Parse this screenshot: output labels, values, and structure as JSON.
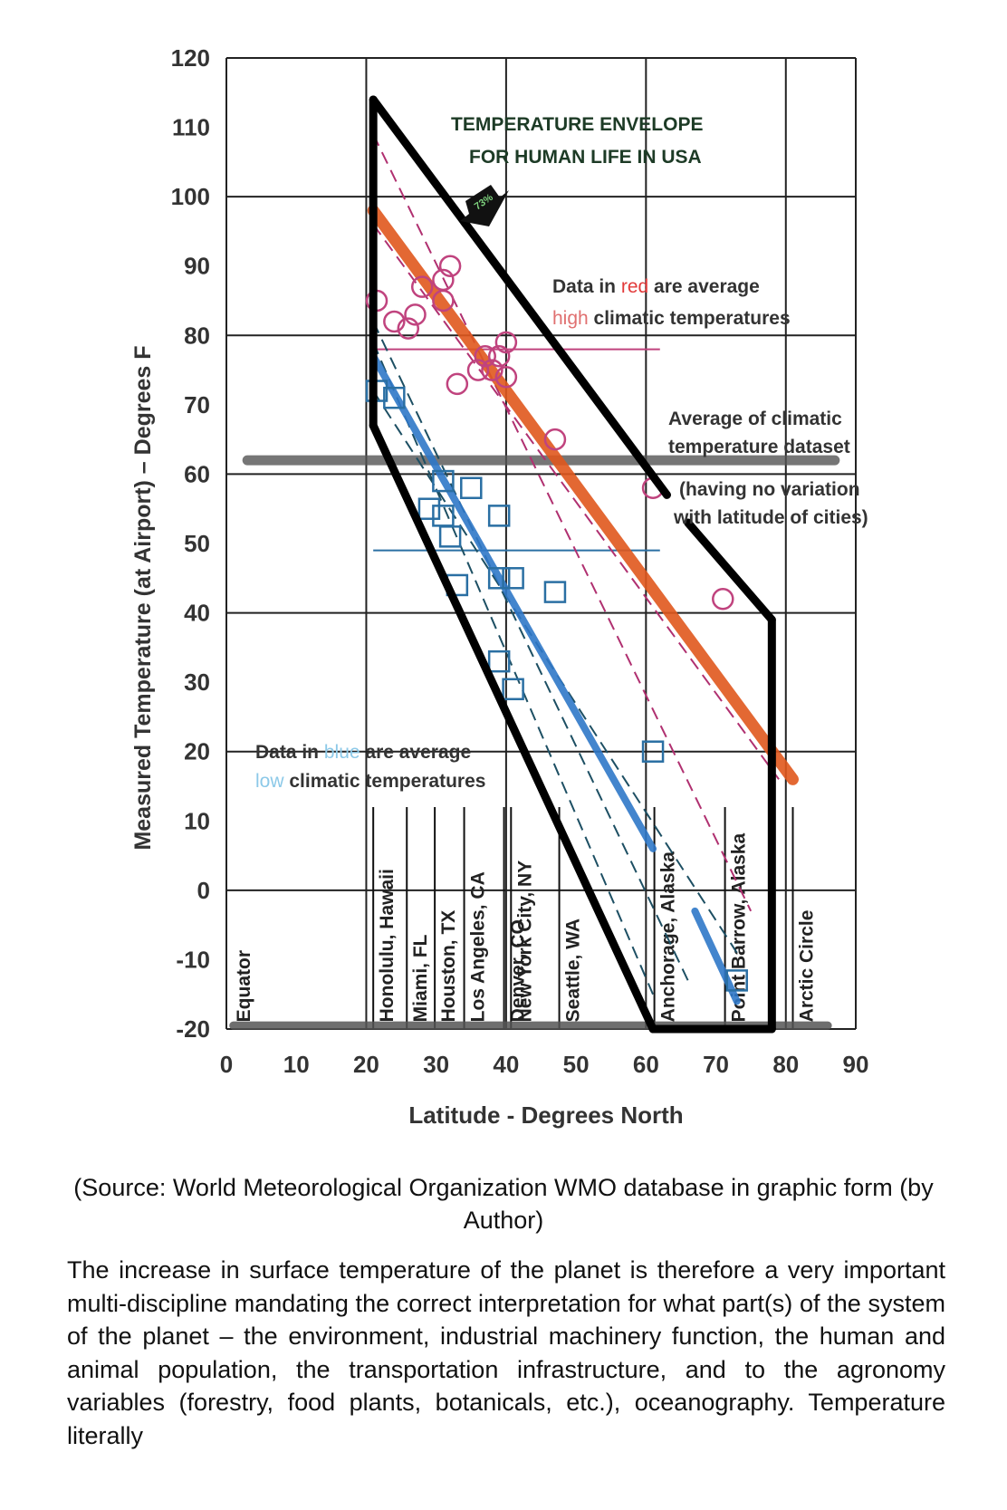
{
  "chart_data": {
    "type": "scatter",
    "title": [
      "TEMPERATURE ENVELOPE",
      "FOR HUMAN LIFE IN USA"
    ],
    "xlabel": "Latitude - Degrees North",
    "ylabel": "Measured Temperature (at Airport) – Degrees F",
    "xlim": [
      0,
      90
    ],
    "ylim": [
      -20,
      120
    ],
    "x_ticks": [
      "0",
      "10",
      "20",
      "30",
      "40",
      "50",
      "60",
      "70",
      "80",
      "90"
    ],
    "y_ticks": [
      "120",
      "110",
      "100",
      "90",
      "80",
      "70",
      "60",
      "50",
      "40",
      "30",
      "20",
      "10",
      "0",
      "-10",
      "-20"
    ],
    "arrow_label": "73%",
    "cities": [
      {
        "name": "Equator",
        "lat": 0
      },
      {
        "name": "Honolulu, Hawaii",
        "lat": 21
      },
      {
        "name": "Miami, FL",
        "lat": 25.8
      },
      {
        "name": "Houston, TX",
        "lat": 29.8
      },
      {
        "name": "Los Angeles, CA",
        "lat": 34
      },
      {
        "name": "Denver, CO",
        "lat": 39.7
      },
      {
        "name": "New York City, NY",
        "lat": 40.7
      },
      {
        "name": "Seattle, WA",
        "lat": 47.6
      },
      {
        "name": "Anchorage, Alaska",
        "lat": 61.2
      },
      {
        "name": "Point Barrow, Alaska",
        "lat": 71.3
      },
      {
        "name": "Arctic Circle",
        "lat": 81
      }
    ],
    "series": [
      {
        "name": "Data in red are average high climatic temperatures",
        "color": "#c0437e",
        "marker": "circle",
        "points": [
          [
            21.5,
            85
          ],
          [
            24,
            82
          ],
          [
            26,
            81
          ],
          [
            27,
            83
          ],
          [
            28,
            87
          ],
          [
            31,
            88
          ],
          [
            31,
            85
          ],
          [
            32,
            90
          ],
          [
            33,
            73
          ],
          [
            36,
            75
          ],
          [
            37,
            77
          ],
          [
            38,
            75
          ],
          [
            39,
            77
          ],
          [
            40,
            74
          ],
          [
            40,
            79
          ],
          [
            47,
            65
          ],
          [
            61,
            58
          ],
          [
            71,
            42
          ]
        ]
      },
      {
        "name": "Data in blue are average low climatic temperatures",
        "color": "#2a6fa3",
        "marker": "square",
        "points": [
          [
            21.5,
            72
          ],
          [
            24,
            71
          ],
          [
            29,
            55
          ],
          [
            31,
            54
          ],
          [
            31,
            59
          ],
          [
            32,
            51
          ],
          [
            33,
            44
          ],
          [
            35,
            58
          ],
          [
            39,
            54
          ],
          [
            39,
            45
          ],
          [
            41,
            45
          ],
          [
            47,
            43
          ],
          [
            39,
            33
          ],
          [
            41,
            29
          ],
          [
            61,
            20
          ],
          [
            73,
            -13
          ]
        ]
      }
    ],
    "trend_lines": [
      {
        "name": "high trend",
        "color": "#e0581e",
        "from": [
          21,
          98
        ],
        "to": [
          81,
          16
        ]
      },
      {
        "name": "low trend",
        "color": "#2f78c8",
        "from": [
          21,
          77
        ],
        "to": [
          61,
          6
        ]
      },
      {
        "name": "low trend Alaska",
        "color": "#2f78c8",
        "from": [
          67,
          -3
        ],
        "to": [
          73,
          -16
        ]
      }
    ],
    "reference_lines": [
      {
        "label": [
          "Average of climatic",
          "temperature dataset",
          "(having no variation",
          "with latitude of cities)"
        ],
        "y": 62,
        "color": "#555555"
      },
      {
        "name": "average high",
        "y": 78,
        "from_x": 21,
        "to_x": 62,
        "color": "#c0437e"
      },
      {
        "name": "average low",
        "y": 49,
        "from_x": 21,
        "to_x": 62,
        "color": "#2a6fa3"
      }
    ],
    "envelope": {
      "color": "#000000",
      "points": [
        [
          21,
          114
        ],
        [
          63,
          57
        ],
        [
          78,
          39
        ],
        [
          78,
          -20
        ],
        [
          61,
          -20
        ],
        [
          21,
          67
        ]
      ],
      "note": "left edge x=21 from 67 to 114; upper edge 114→57 at x=63; gap; 66→53 to x=78,39; right edge down to -20"
    },
    "annotations": {
      "red_note": [
        "Data in ",
        "red",
        " are average",
        "high",
        " climatic temperatures"
      ],
      "blue_note": [
        "Data in ",
        "blue",
        " are average",
        "low",
        " climatic temperatures"
      ]
    }
  },
  "caption": {
    "source": "(Source: World Meteorological Organization WMO database in graphic form (by Author)"
  },
  "body": {
    "paragraph": "The increase in surface temperature of the planet is therefore a very important multi-discipline mandating the correct interpretation for what part(s) of the system of the planet – the environment, industrial machinery function, the human and animal population, the transportation infrastructure, and to the agronomy variables (forestry, food plants, botanicals, etc.), oceanography. Temperature literally"
  }
}
